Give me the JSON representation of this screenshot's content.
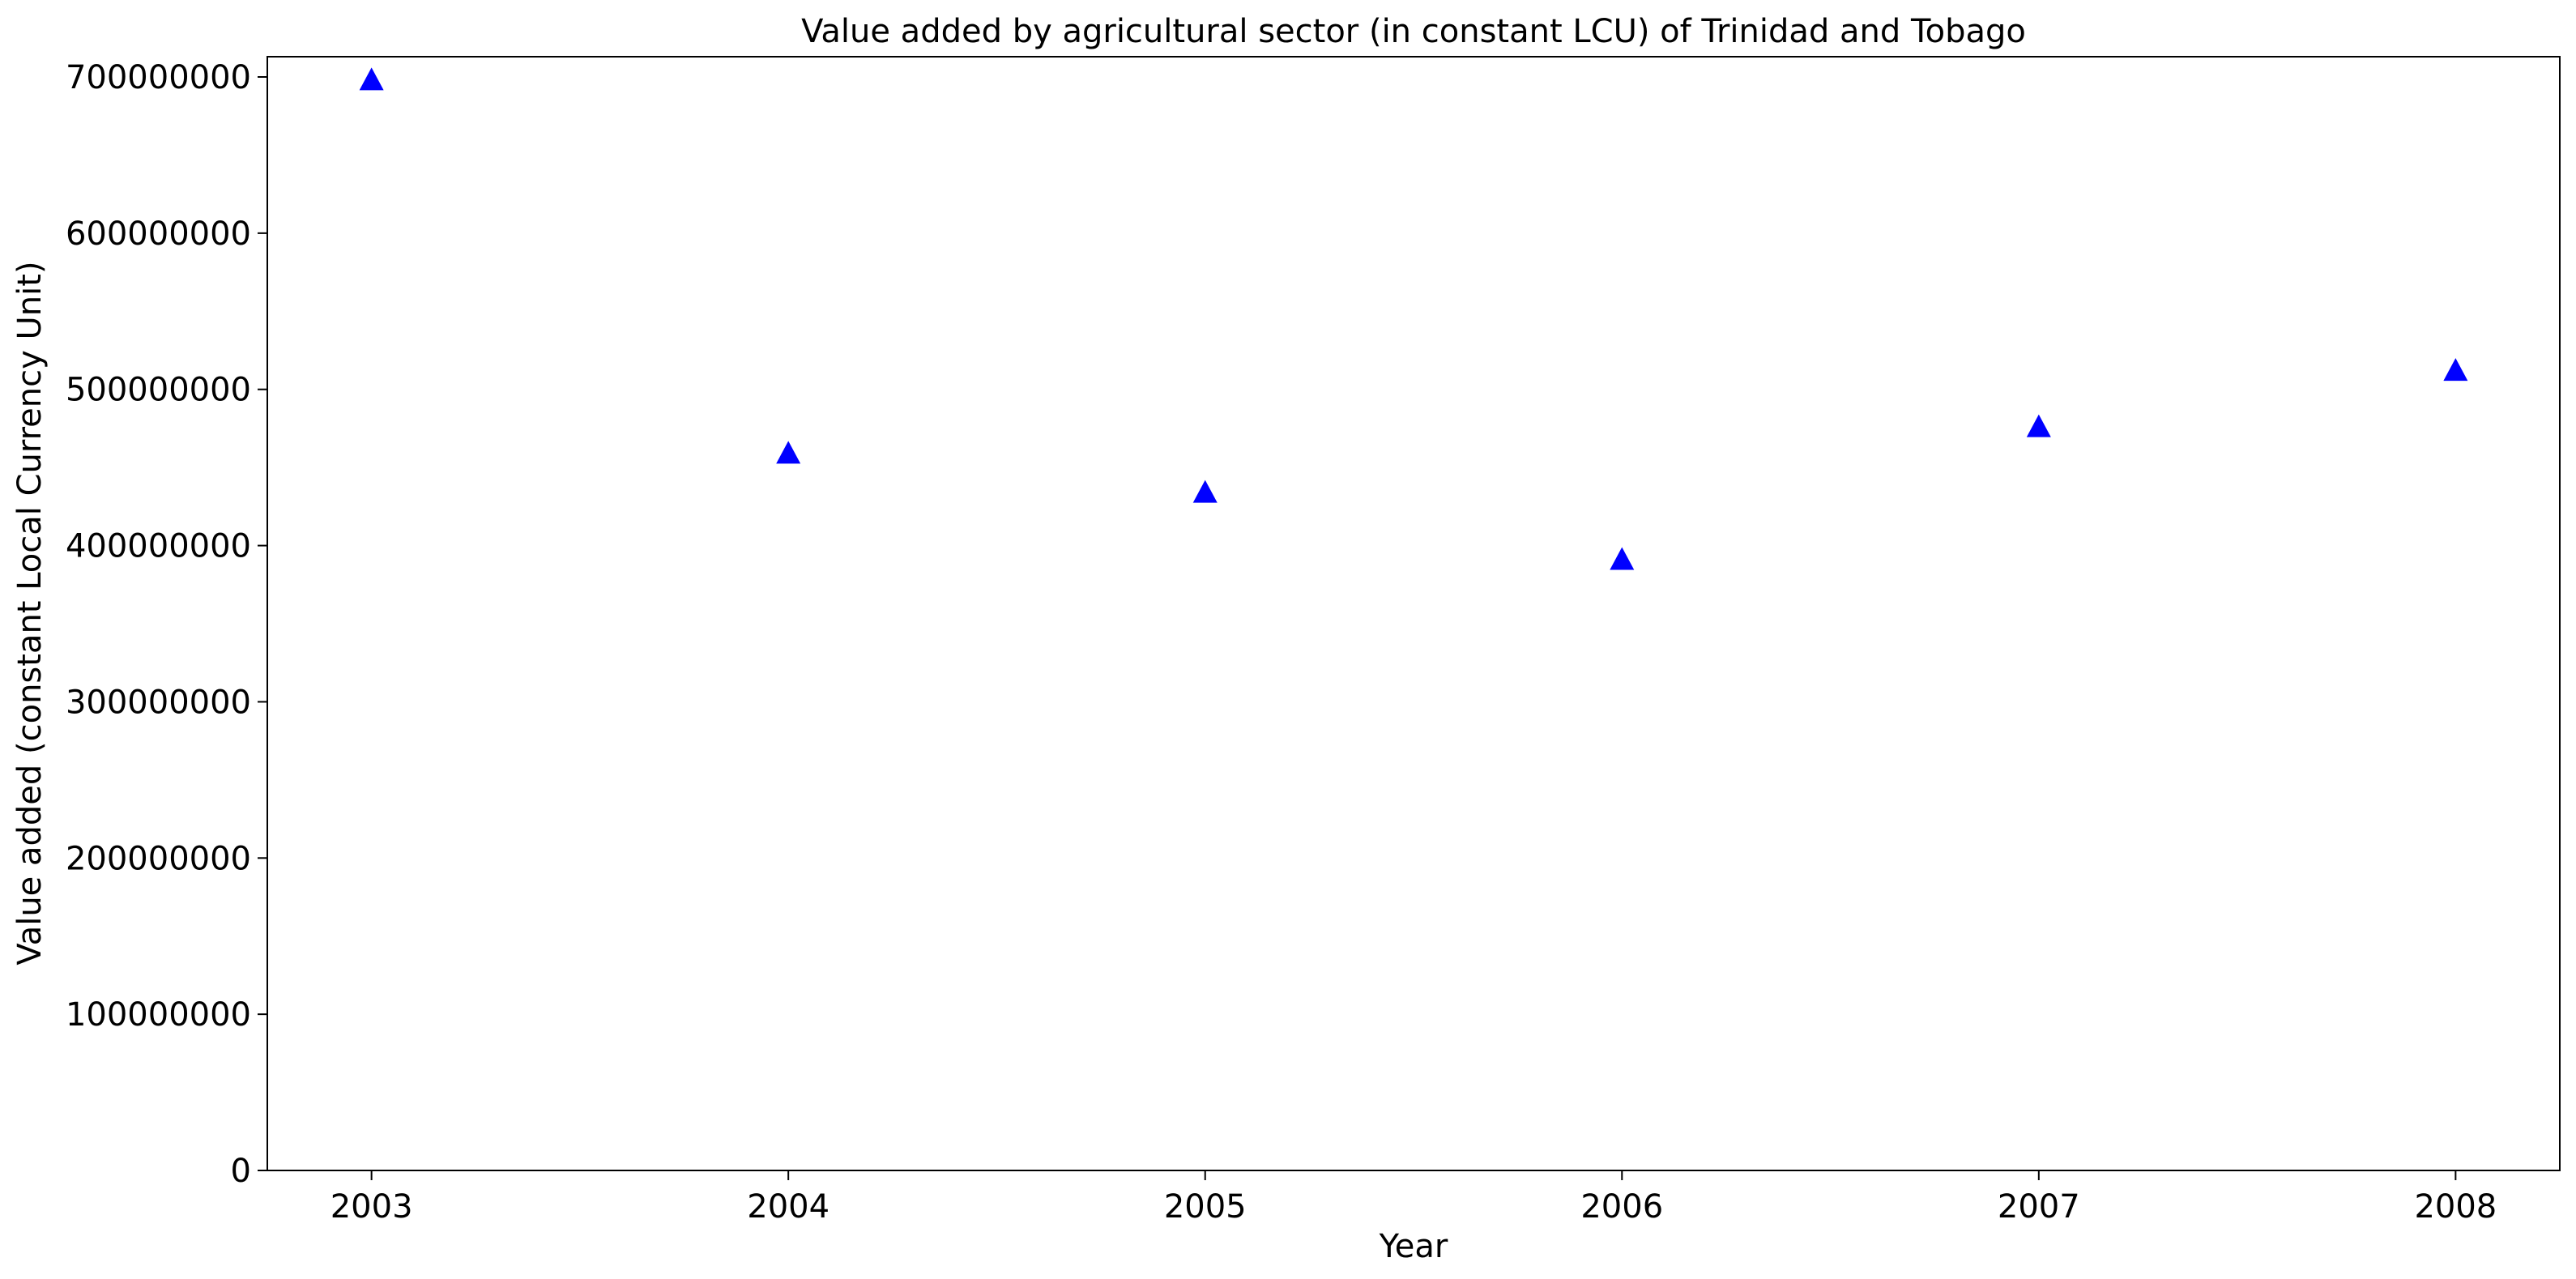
{
  "chart_data": {
    "type": "scatter",
    "title": "Value added by agricultural sector (in constant LCU) of Trinidad and Tobago",
    "xlabel": "Year",
    "ylabel": "Value added (constant Local Currency Unit)",
    "x": [
      "2003",
      "2004",
      "2005",
      "2006",
      "2007",
      "2008"
    ],
    "series": [
      {
        "values": [
          697000000,
          458000000,
          433000000,
          390000000,
          475000000,
          511000000
        ],
        "color": "#0000ff",
        "marker": "triangle-up"
      }
    ],
    "xticks": [
      "2003",
      "2004",
      "2005",
      "2006",
      "2007",
      "2008"
    ],
    "yticks": [
      "0",
      "100000000",
      "200000000",
      "300000000",
      "400000000",
      "500000000",
      "600000000",
      "700000000"
    ],
    "xlim": [
      2002.75,
      2008.25
    ],
    "ylim": [
      0,
      700000000
    ],
    "grid": false,
    "legend": "none"
  }
}
